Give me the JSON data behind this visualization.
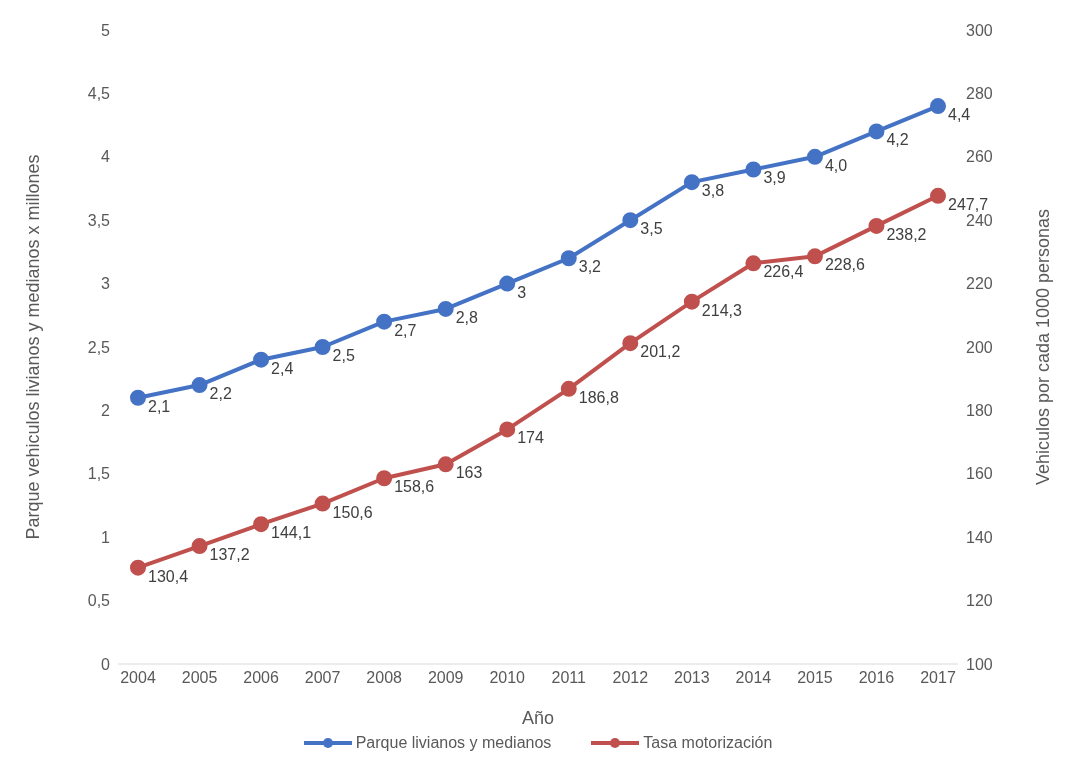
{
  "chart_data": {
    "type": "line",
    "xlabel": "Año",
    "ylabel": "Parque vehiculos livianos y medianos x millones",
    "y2label": "Vehiculos por cada 1000 personas",
    "categories": [
      "2004",
      "2005",
      "2006",
      "2007",
      "2008",
      "2009",
      "2010",
      "2011",
      "2012",
      "2013",
      "2014",
      "2015",
      "2016",
      "2017"
    ],
    "series": [
      {
        "name": "Parque livianos y medianos",
        "color": "#4472c4",
        "values": [
          2.1,
          2.2,
          2.4,
          2.5,
          2.7,
          2.8,
          3,
          3.2,
          3.5,
          3.8,
          3.9,
          4.0,
          4.2,
          4.4
        ],
        "value_labels": [
          "2,1",
          "2,2",
          "2,4",
          "2,5",
          "2,7",
          "2,8",
          "3",
          "3,2",
          "3,5",
          "3,8",
          "3,9",
          "4,0",
          "4,2",
          "4,4"
        ]
      },
      {
        "name": "Tasa motorización",
        "color": "#c0504d",
        "axis": "y2",
        "values": [
          130.4,
          137.2,
          144.1,
          150.6,
          158.6,
          163,
          174,
          186.8,
          201.2,
          214.3,
          226.4,
          228.6,
          238.2,
          247.7
        ],
        "value_labels": [
          "130,4",
          "137,2",
          "144,1",
          "150,6",
          "158,6",
          "163",
          "174",
          "186,8",
          "201,2",
          "214,3",
          "226,4",
          "228,6",
          "238,2",
          "247,7"
        ]
      }
    ],
    "ylim": [
      0,
      5
    ],
    "yticks": [
      0,
      {
        "value": 0.5,
        "label": "0,5"
      },
      1,
      {
        "value": 1.5,
        "label": "1,5"
      },
      2,
      {
        "value": 2.5,
        "label": "2,5"
      },
      3,
      {
        "value": 3.5,
        "label": "3,5"
      },
      4,
      {
        "value": 4.5,
        "label": "4,5"
      },
      5
    ],
    "y2lim": [
      100,
      300
    ],
    "y2ticks": [
      100,
      120,
      140,
      160,
      180,
      200,
      220,
      240,
      260,
      280,
      300
    ],
    "marker": "circle",
    "legend": "bottom"
  }
}
